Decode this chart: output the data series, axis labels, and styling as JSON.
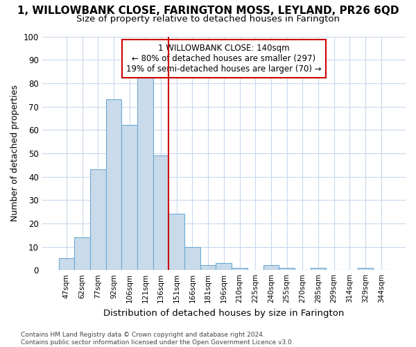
{
  "title_line1": "1, WILLOWBANK CLOSE, FARINGTON MOSS, LEYLAND, PR26 6QD",
  "title_line2": "Size of property relative to detached houses in Farington",
  "xlabel": "Distribution of detached houses by size in Farington",
  "ylabel": "Number of detached properties",
  "bar_labels": [
    "47sqm",
    "62sqm",
    "77sqm",
    "92sqm",
    "106sqm",
    "121sqm",
    "136sqm",
    "151sqm",
    "166sqm",
    "181sqm",
    "196sqm",
    "210sqm",
    "225sqm",
    "240sqm",
    "255sqm",
    "270sqm",
    "285sqm",
    "299sqm",
    "314sqm",
    "329sqm",
    "344sqm"
  ],
  "bar_values": [
    5,
    14,
    43,
    73,
    62,
    83,
    49,
    24,
    10,
    2,
    3,
    1,
    0,
    2,
    1,
    0,
    1,
    0,
    0,
    1,
    0
  ],
  "bar_color": "#c9daea",
  "bar_edge_color": "#6aaad4",
  "vline_x": 6.5,
  "vline_color": "#cc0000",
  "annotation_text": "1 WILLOWBANK CLOSE: 140sqm\n← 80% of detached houses are smaller (297)\n19% of semi-detached houses are larger (70) →",
  "annotation_box_color": "#cc0000",
  "ylim": [
    0,
    100
  ],
  "yticks": [
    0,
    10,
    20,
    30,
    40,
    50,
    60,
    70,
    80,
    90,
    100
  ],
  "grid_color": "#c8d8ec",
  "footer_line1": "Contains HM Land Registry data © Crown copyright and database right 2024.",
  "footer_line2": "Contains public sector information licensed under the Open Government Licence v3.0.",
  "bg_color": "#ffffff",
  "title1_fontsize": 11,
  "title2_fontsize": 9.5,
  "ylabel_fontsize": 9,
  "xlabel_fontsize": 9.5
}
